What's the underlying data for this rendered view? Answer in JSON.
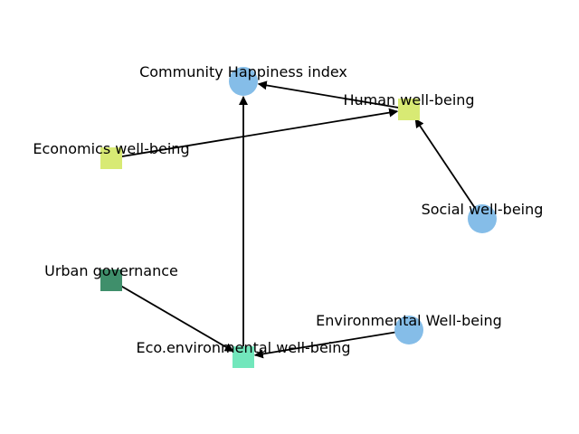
{
  "diagram": {
    "nodes": [
      {
        "id": "community",
        "label": "Community Happiness index",
        "shape": "circle",
        "color": "#85bde8"
      },
      {
        "id": "human",
        "label": "Human well-being",
        "shape": "square",
        "color": "#d8ea74"
      },
      {
        "id": "economics",
        "label": "Economics well-being",
        "shape": "square",
        "color": "#d8ea74"
      },
      {
        "id": "social",
        "label": "Social well-being",
        "shape": "circle",
        "color": "#85bde8"
      },
      {
        "id": "urban",
        "label": "Urban governance",
        "shape": "square",
        "color": "#3f8f6b"
      },
      {
        "id": "environmental",
        "label": "Environmental Well-being",
        "shape": "circle",
        "color": "#85bde8"
      },
      {
        "id": "ecoenv",
        "label": "Eco.environmental well-being",
        "shape": "square",
        "color": "#72e7bc"
      }
    ],
    "edges": [
      {
        "from": "human",
        "to": "community"
      },
      {
        "from": "economics",
        "to": "human"
      },
      {
        "from": "social",
        "to": "human"
      },
      {
        "from": "ecoenv",
        "to": "community"
      },
      {
        "from": "urban",
        "to": "ecoenv"
      },
      {
        "from": "environmental",
        "to": "ecoenv"
      }
    ],
    "edge_color": "#000000"
  }
}
